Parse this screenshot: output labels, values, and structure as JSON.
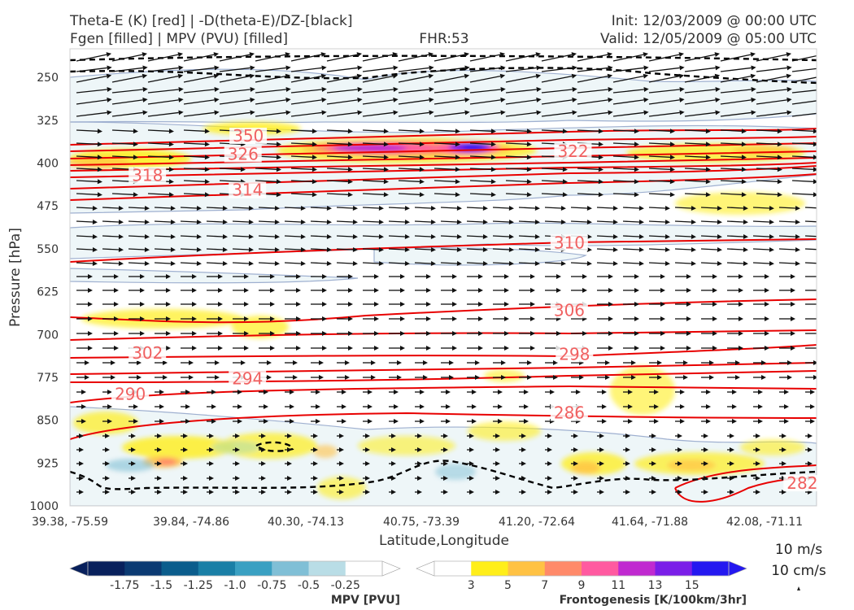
{
  "titles": {
    "left_line1": "Theta-E (K) [red] | -D(theta-E)/DZ-[black]",
    "left_line2": "Fgen [filled] | MPV (PVU) [filled]",
    "center": "FHR:53",
    "right_line1": "Init: 12/03/2009 @ 00:00 UTC",
    "right_line2": "Valid: 12/05/2009 @ 05:00 UTC"
  },
  "chart_data": {
    "type": "cross-section",
    "xlabel": "Latitude,Longitude",
    "ylabel": "Pressure [hPa]",
    "x_ticks": [
      "39.38, -75.59",
      "39.84, -74.86",
      "40.30, -74.13",
      "40.75, -73.39",
      "41.20, -72.64",
      "41.64, -71.88",
      "42.08, -71.11"
    ],
    "y_ticks": [
      250,
      325,
      400,
      475,
      550,
      625,
      700,
      775,
      850,
      925,
      1000
    ],
    "ylim": [
      1000,
      200
    ],
    "grid": false,
    "theta_e_contour_labels": [
      {
        "value": "350",
        "x_frac": 0.218,
        "p": 358
      },
      {
        "value": "326",
        "x_frac": 0.211,
        "p": 390
      },
      {
        "value": "322",
        "x_frac": 0.653,
        "p": 385
      },
      {
        "value": "318",
        "x_frac": 0.083,
        "p": 427
      },
      {
        "value": "314",
        "x_frac": 0.217,
        "p": 453
      },
      {
        "value": "310",
        "x_frac": 0.648,
        "p": 545
      },
      {
        "value": "306",
        "x_frac": 0.648,
        "p": 663
      },
      {
        "value": "302",
        "x_frac": 0.083,
        "p": 738
      },
      {
        "value": "298",
        "x_frac": 0.655,
        "p": 740
      },
      {
        "value": "294",
        "x_frac": 0.217,
        "p": 783
      },
      {
        "value": "290",
        "x_frac": 0.06,
        "p": 810
      },
      {
        "value": "286",
        "x_frac": 0.648,
        "p": 843
      },
      {
        "value": "282",
        "x_frac": 0.96,
        "p": 966
      }
    ],
    "mpv_colorbar": {
      "label": "MPV [PVU]",
      "ticks": [
        "-1.75",
        "-1.5",
        "-1.25",
        "-1.0",
        "-0.75",
        "-0.5",
        "-0.25"
      ],
      "colors": [
        "#08205c",
        "#0b3a72",
        "#0b5d8c",
        "#1a7fa6",
        "#3aa0c2",
        "#80bfd6",
        "#b9dde6",
        "#ffffff"
      ]
    },
    "fgen_colorbar": {
      "label": "Frontogenesis [K/100km/3hr]",
      "ticks": [
        "3",
        "5",
        "7",
        "9",
        "11",
        "13",
        "15"
      ],
      "colors": [
        "#ffffff",
        "#ffee1a",
        "#ffc244",
        "#ff8a6a",
        "#ff5aa0",
        "#c02ad0",
        "#7a1ee8",
        "#2418f0"
      ]
    },
    "vector_reference": {
      "label1": "10 m/s",
      "label2": "10 cm/s"
    }
  }
}
